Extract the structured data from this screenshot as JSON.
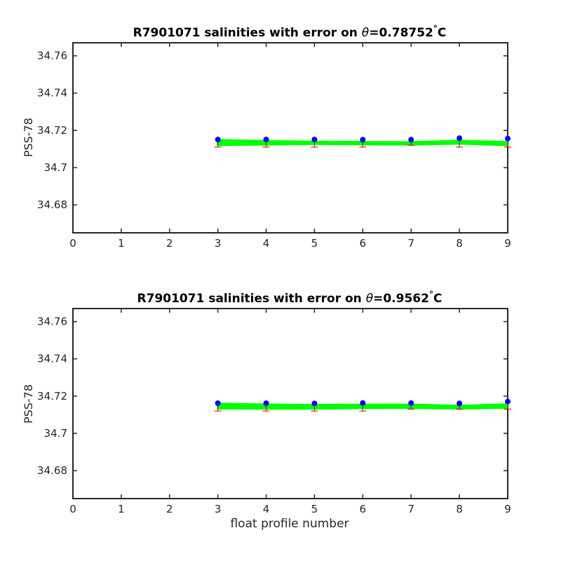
{
  "chart_data": [
    {
      "type": "line",
      "title_prefix": "R7901071 salinities with error on ",
      "title_theta": "θ",
      "title_value": "=0.78752",
      "title_deg": "°",
      "title_unit": "C",
      "xlabel": "",
      "ylabel": "PSS-78",
      "xlim": [
        0,
        9
      ],
      "ylim": [
        34.665,
        34.767
      ],
      "xticks": [
        0,
        1,
        2,
        3,
        4,
        5,
        6,
        7,
        8,
        9
      ],
      "yticks": [
        34.68,
        34.7,
        34.72,
        34.74,
        34.76
      ],
      "ytick_labels": [
        "34.68",
        "34.7",
        "34.72",
        "34.74",
        "34.76"
      ],
      "x": [
        3,
        4,
        5,
        6,
        7,
        8,
        9
      ],
      "points": [
        34.7151,
        34.7151,
        34.7151,
        34.715,
        34.715,
        34.7158,
        34.7156
      ],
      "error_low": [
        34.711,
        34.711,
        34.711,
        34.711,
        34.712,
        34.711,
        34.711
      ],
      "band_upper": [
        34.7148,
        34.7142,
        34.7139,
        34.7137,
        34.7136,
        34.7144,
        34.7137
      ],
      "band_lower": [
        34.7122,
        34.7124,
        34.7127,
        34.7125,
        34.7124,
        34.7129,
        34.7121
      ],
      "colors": {
        "points": "#0000ff",
        "band": "#00ff00",
        "error": "#c00000"
      }
    },
    {
      "type": "line",
      "title_prefix": "R7901071 salinities with error on ",
      "title_theta": "θ",
      "title_value": "=0.9562",
      "title_deg": "°",
      "title_unit": "C",
      "xlabel": "float profile number",
      "ylabel": "PSS-78",
      "xlim": [
        0,
        9
      ],
      "ylim": [
        34.665,
        34.767
      ],
      "xticks": [
        0,
        1,
        2,
        3,
        4,
        5,
        6,
        7,
        8,
        9
      ],
      "yticks": [
        34.68,
        34.7,
        34.72,
        34.74,
        34.76
      ],
      "ytick_labels": [
        "34.68",
        "34.7",
        "34.72",
        "34.74",
        "34.76"
      ],
      "x": [
        3,
        4,
        5,
        6,
        7,
        8,
        9
      ],
      "points": [
        34.7162,
        34.7162,
        34.7161,
        34.7163,
        34.7163,
        34.7161,
        34.7171
      ],
      "error_low": [
        34.712,
        34.712,
        34.712,
        34.712,
        34.713,
        34.713,
        34.713
      ],
      "band_upper": [
        34.7159,
        34.7155,
        34.7152,
        34.7154,
        34.7154,
        34.7148,
        34.7156
      ],
      "band_lower": [
        34.7134,
        34.7133,
        34.7133,
        34.7136,
        34.7137,
        34.7133,
        34.7138
      ],
      "colors": {
        "points": "#0000ff",
        "band": "#00ff00",
        "error": "#c00000"
      }
    }
  ]
}
